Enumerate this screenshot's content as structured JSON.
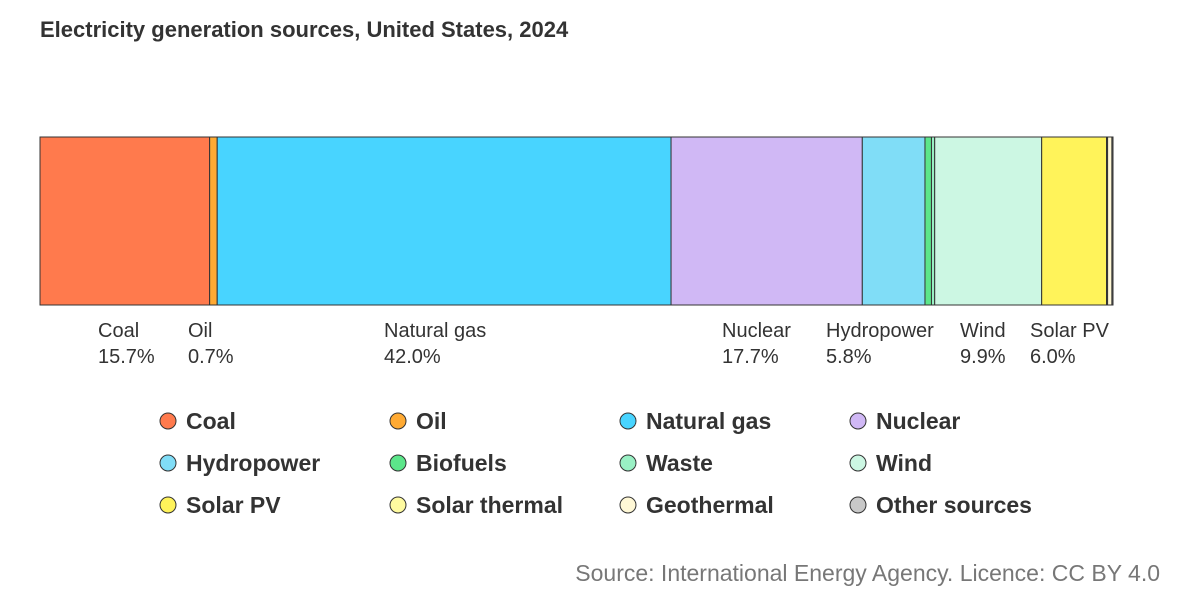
{
  "title": "Electricity generation sources, United States, 2024",
  "source": "Source: International Energy Agency. Licence: CC BY 4.0",
  "chart_data": {
    "type": "bar",
    "subtype": "stacked-100-percent-single-bar",
    "title": "Electricity generation sources, United States, 2024",
    "unit": "%",
    "categories": [
      "Coal",
      "Oil",
      "Natural gas",
      "Nuclear",
      "Hydropower",
      "Biofuels",
      "Waste",
      "Wind",
      "Solar PV",
      "Solar thermal",
      "Geothermal",
      "Other sources"
    ],
    "values": [
      15.7,
      0.7,
      42.0,
      17.7,
      5.8,
      0.6,
      0.3,
      9.9,
      6.0,
      0.1,
      0.4,
      0.1
    ],
    "value_labels": [
      "15.7%",
      "0.7%",
      "42.0%",
      "17.7%",
      "5.8%",
      "",
      "",
      "9.9%",
      "6.0%",
      "",
      "",
      ""
    ],
    "labeled": [
      true,
      true,
      true,
      true,
      true,
      false,
      false,
      true,
      true,
      false,
      false,
      false
    ],
    "colors": [
      "#FF7A4D",
      "#FFAA33",
      "#48D4FF",
      "#D0B8F5",
      "#80DDF7",
      "#5CE68A",
      "#99F0C4",
      "#CCF7E3",
      "#FFF35A",
      "#FFFBA0",
      "#FFF8D6",
      "#C8C8C8"
    ],
    "legend_placement": "bottom",
    "grid": false
  }
}
